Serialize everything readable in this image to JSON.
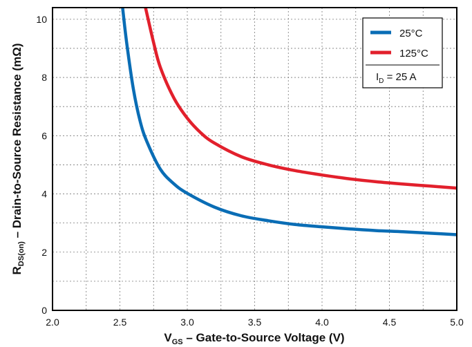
{
  "chart_data": {
    "type": "line",
    "xlabel": {
      "main": "V",
      "sub": "GS",
      "rest": " – Gate-to-Source Voltage (V)"
    },
    "ylabel": {
      "main": "R",
      "sub": "DS(on)",
      "rest": " – Drain-to-Source Resistance (mΩ)"
    },
    "xlim": [
      2.0,
      5.0
    ],
    "ylim": [
      0,
      10.4
    ],
    "x_ticks": [
      "2.0",
      "2.5",
      "3.0",
      "3.5",
      "4.0",
      "4.5",
      "5.0"
    ],
    "y_ticks": [
      "0",
      "2",
      "4",
      "6",
      "8",
      "10"
    ],
    "grid": true,
    "legend_position": "top-right",
    "legend_note": {
      "main": "I",
      "sub": "D",
      "rest": " = 25 A"
    },
    "series": [
      {
        "name": "25°C",
        "color": "#0a6db5",
        "points": [
          [
            2.52,
            10.4
          ],
          [
            2.55,
            9.2
          ],
          [
            2.6,
            7.6
          ],
          [
            2.65,
            6.5
          ],
          [
            2.7,
            5.8
          ],
          [
            2.8,
            4.85
          ],
          [
            2.9,
            4.35
          ],
          [
            3.0,
            4.02
          ],
          [
            3.2,
            3.55
          ],
          [
            3.4,
            3.25
          ],
          [
            3.6,
            3.08
          ],
          [
            3.8,
            2.95
          ],
          [
            4.0,
            2.87
          ],
          [
            4.2,
            2.8
          ],
          [
            4.4,
            2.74
          ],
          [
            4.6,
            2.7
          ],
          [
            4.8,
            2.65
          ],
          [
            5.0,
            2.6
          ]
        ]
      },
      {
        "name": "125°C",
        "color": "#e2202c",
        "points": [
          [
            2.69,
            10.4
          ],
          [
            2.75,
            9.2
          ],
          [
            2.8,
            8.35
          ],
          [
            2.9,
            7.3
          ],
          [
            3.0,
            6.6
          ],
          [
            3.1,
            6.1
          ],
          [
            3.2,
            5.75
          ],
          [
            3.4,
            5.28
          ],
          [
            3.6,
            5.0
          ],
          [
            3.8,
            4.8
          ],
          [
            4.0,
            4.65
          ],
          [
            4.2,
            4.52
          ],
          [
            4.4,
            4.42
          ],
          [
            4.6,
            4.34
          ],
          [
            4.8,
            4.27
          ],
          [
            5.0,
            4.2
          ]
        ]
      }
    ]
  }
}
